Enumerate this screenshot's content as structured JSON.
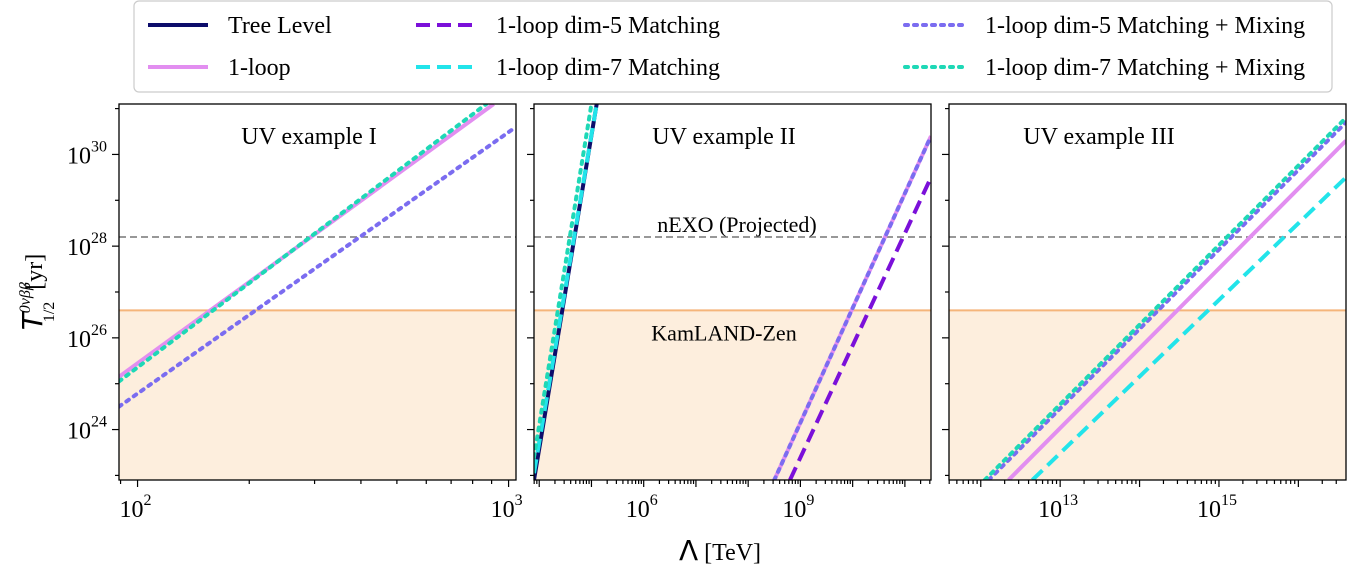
{
  "chart_data": {
    "type": "line",
    "legend": {
      "position": "top",
      "entries": [
        {
          "label": "Tree Level",
          "color": "#0d0d6b",
          "dash": "solid"
        },
        {
          "label": "1-loop",
          "color": "#e28ef0",
          "dash": "solid"
        },
        {
          "label": "1-loop dim-5 Matching",
          "color": "#7b10d9",
          "dash": "dashed"
        },
        {
          "label": "1-loop dim-7 Matching",
          "color": "#22e4ea",
          "dash": "dashed"
        },
        {
          "label": "1-loop dim-5 Matching + Mixing",
          "color": "#7b6cf0",
          "dash": "dotted"
        },
        {
          "label": "1-loop dim-7 Matching + Mixing",
          "color": "#1ed8b6",
          "dash": "dotted"
        }
      ]
    },
    "xlabel": "Λ [TeV]",
    "ylabel": "T_{1/2}^{0νββ} [yr]",
    "ylabel_main": "T",
    "ylabel_sup": "0νββ",
    "ylabel_sub": "1/2",
    "ylabel_unit": "[yr]",
    "x_label_main": "Λ",
    "x_label_unit": "[TeV]",
    "y_scale": "log",
    "x_scale": "log",
    "ylim_log10": [
      22.9,
      31.1
    ],
    "y_ticks_log10": [
      24,
      26,
      28,
      30
    ],
    "reference_lines": {
      "nEXO": {
        "label": "nEXO (Projected)",
        "log10_y": 28.2
      },
      "KamLAND": {
        "label": "KamLAND-Zen",
        "log10_y": 26.6
      }
    },
    "panels": [
      {
        "title": "UV example I",
        "xlim_log10": [
          1.95,
          3.02
        ],
        "x_ticks_log10": [
          2,
          3
        ],
        "show_ref_labels": false,
        "series": [
          {
            "legend_index": 1,
            "points": [
              [
                1.95,
                25.15
              ],
              [
                2.96,
                31.1
              ]
            ]
          },
          {
            "legend_index": 5,
            "points": [
              [
                1.95,
                25.05
              ],
              [
                2.94,
                31.1
              ]
            ]
          },
          {
            "legend_index": 4,
            "points": [
              [
                1.95,
                24.5
              ],
              [
                3.02,
                30.6
              ]
            ]
          }
        ]
      },
      {
        "title": "UV example II",
        "xlim_log10": [
          3.9,
          11.5
        ],
        "x_ticks_log10": [
          6,
          9
        ],
        "show_ref_labels": true,
        "series": [
          {
            "legend_index": 0,
            "points": [
              [
                3.9,
                22.9
              ],
              [
                5.1,
                31.1
              ]
            ]
          },
          {
            "legend_index": 3,
            "points": [
              [
                3.9,
                23.05
              ],
              [
                5.1,
                31.1
              ]
            ]
          },
          {
            "legend_index": 5,
            "points": [
              [
                3.9,
                23.4
              ],
              [
                5.0,
                31.1
              ]
            ]
          },
          {
            "legend_index": 1,
            "points": [
              [
                8.5,
                22.9
              ],
              [
                11.5,
                30.4
              ]
            ]
          },
          {
            "legend_index": 4,
            "points": [
              [
                8.5,
                22.9
              ],
              [
                11.5,
                30.4
              ]
            ]
          },
          {
            "legend_index": 2,
            "points": [
              [
                8.8,
                22.9
              ],
              [
                11.5,
                29.5
              ]
            ]
          }
        ]
      },
      {
        "title": "UV example III",
        "xlim_log10": [
          11.6,
          16.6
        ],
        "x_ticks_log10": [
          13,
          15
        ],
        "show_ref_labels": false,
        "series": [
          {
            "legend_index": 4,
            "points": [
              [
                12.1,
                22.9
              ],
              [
                16.6,
                30.7
              ]
            ]
          },
          {
            "legend_index": 5,
            "points": [
              [
                12.05,
                22.9
              ],
              [
                16.6,
                30.8
              ]
            ]
          },
          {
            "legend_index": 1,
            "points": [
              [
                12.35,
                22.9
              ],
              [
                16.6,
                30.3
              ]
            ]
          },
          {
            "legend_index": 3,
            "points": [
              [
                12.65,
                22.9
              ],
              [
                16.6,
                29.5
              ]
            ]
          }
        ]
      }
    ]
  }
}
